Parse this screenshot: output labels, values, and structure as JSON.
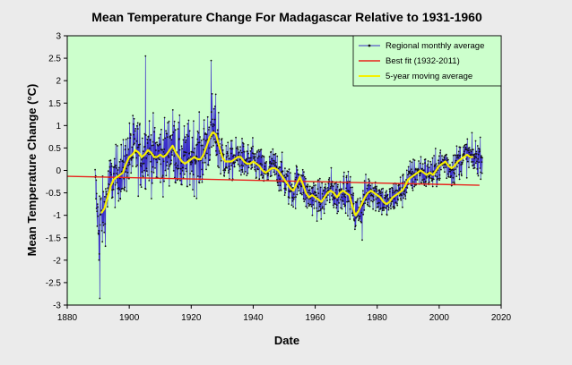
{
  "chart_data": {
    "type": "line",
    "title": "Mean Temperature Change For Madagascar Relative to 1931-1960",
    "xlabel": "Date",
    "ylabel": "Mean Temperature  Change  (°C)",
    "xlim": [
      1880,
      2020
    ],
    "ylim": [
      -3,
      3
    ],
    "xticks": [
      1880,
      1900,
      1920,
      1940,
      1960,
      1980,
      2000,
      2020
    ],
    "yticks": [
      -3,
      -2.5,
      -2,
      -1.5,
      -1,
      -0.5,
      0,
      0.5,
      1,
      1.5,
      2,
      2.5,
      3
    ],
    "grid": false,
    "legend_position": "top-right",
    "series": [
      {
        "name": "Regional monthly average",
        "style": "line-markers",
        "color": "#3b2fc9",
        "marker_color": "#111111",
        "years": [
          1889,
          1890,
          1891,
          1892,
          1893,
          1894,
          1895,
          1896,
          1897,
          1898,
          1899,
          1900,
          1901,
          1902,
          1903,
          1904,
          1905,
          1906,
          1907,
          1908,
          1909,
          1910,
          1911,
          1912,
          1913,
          1914,
          1915,
          1916,
          1917,
          1918,
          1919,
          1920,
          1921,
          1922,
          1923,
          1924,
          1925,
          1926,
          1927,
          1928,
          1929,
          1930,
          1931,
          1932,
          1933,
          1934,
          1935,
          1936,
          1937,
          1938,
          1939,
          1940,
          1941,
          1942,
          1943,
          1944,
          1945,
          1946,
          1947,
          1948,
          1949,
          1950,
          1951,
          1952,
          1953,
          1954,
          1955,
          1956,
          1957,
          1958,
          1959,
          1960,
          1961,
          1962,
          1963,
          1964,
          1965,
          1966,
          1967,
          1968,
          1969,
          1970,
          1971,
          1972,
          1973,
          1974,
          1975,
          1976,
          1977,
          1978,
          1979,
          1980,
          1981,
          1982,
          1983,
          1984,
          1985,
          1986,
          1987,
          1988,
          1989,
          1990,
          1991,
          1992,
          1993,
          1994,
          1995,
          1996,
          1997,
          1998,
          1999,
          2000,
          2001,
          2002,
          2003,
          2004,
          2005,
          2006,
          2007,
          2008,
          2009,
          2010,
          2011,
          2012,
          2013
        ],
        "mean": [
          -0.3,
          -1.2,
          -1.1,
          -0.9,
          -0.5,
          -0.2,
          -0.2,
          -0.1,
          0.0,
          -0.1,
          0.2,
          0.3,
          0.4,
          0.5,
          0.4,
          0.3,
          0.4,
          0.5,
          0.4,
          0.3,
          0.3,
          0.4,
          0.3,
          0.4,
          0.5,
          0.6,
          0.4,
          0.3,
          0.2,
          0.2,
          0.3,
          0.3,
          0.4,
          0.3,
          0.3,
          0.4,
          0.6,
          0.8,
          0.9,
          0.8,
          0.6,
          0.3,
          0.2,
          0.2,
          0.2,
          0.25,
          0.3,
          0.3,
          0.2,
          0.15,
          0.2,
          0.2,
          0.15,
          0.1,
          0.0,
          -0.05,
          0.0,
          0.1,
          0.05,
          0.0,
          -0.1,
          -0.2,
          -0.3,
          -0.4,
          -0.45,
          -0.3,
          -0.15,
          -0.3,
          -0.5,
          -0.6,
          -0.55,
          -0.6,
          -0.65,
          -0.7,
          -0.6,
          -0.5,
          -0.4,
          -0.5,
          -0.6,
          -0.5,
          -0.4,
          -0.45,
          -0.5,
          -0.8,
          -1.0,
          -0.9,
          -0.75,
          -0.6,
          -0.5,
          -0.4,
          -0.45,
          -0.55,
          -0.6,
          -0.7,
          -0.75,
          -0.7,
          -0.6,
          -0.55,
          -0.5,
          -0.45,
          -0.35,
          -0.2,
          -0.15,
          -0.1,
          -0.05,
          0.0,
          -0.05,
          -0.1,
          -0.05,
          -0.1,
          0.0,
          0.1,
          0.15,
          0.2,
          0.1,
          0.0,
          0.1,
          0.2,
          0.25,
          0.3,
          0.35,
          0.3,
          0.25,
          0.3,
          0.3
        ],
        "spread": [
          0.8,
          1.3,
          1.0,
          0.9,
          0.8,
          0.8,
          0.8,
          0.8,
          0.9,
          0.9,
          0.9,
          1.0,
          1.0,
          1.0,
          1.0,
          1.0,
          1.0,
          1.0,
          1.0,
          1.0,
          1.0,
          1.0,
          1.0,
          1.0,
          1.0,
          1.0,
          1.0,
          1.0,
          1.0,
          1.0,
          1.0,
          1.0,
          1.0,
          1.0,
          1.0,
          1.0,
          1.0,
          1.0,
          1.0,
          1.0,
          0.9,
          0.6,
          0.55,
          0.55,
          0.55,
          0.55,
          0.55,
          0.55,
          0.55,
          0.55,
          0.55,
          0.55,
          0.55,
          0.55,
          0.55,
          0.55,
          0.55,
          0.55,
          0.55,
          0.55,
          0.55,
          0.55,
          0.55,
          0.55,
          0.55,
          0.55,
          0.55,
          0.55,
          0.55,
          0.55,
          0.55,
          0.55,
          0.55,
          0.55,
          0.55,
          0.55,
          0.55,
          0.55,
          0.55,
          0.55,
          0.55,
          0.55,
          0.55,
          0.55,
          0.55,
          0.55,
          0.55,
          0.55,
          0.55,
          0.55,
          0.55,
          0.55,
          0.5,
          0.5,
          0.5,
          0.5,
          0.5,
          0.5,
          0.5,
          0.5,
          0.5,
          0.5,
          0.5,
          0.5,
          0.5,
          0.5,
          0.5,
          0.5,
          0.5,
          0.5,
          0.5,
          0.5,
          0.5,
          0.5,
          0.5,
          0.5,
          0.5,
          0.5,
          0.5,
          0.5,
          0.5,
          0.5,
          0.5,
          0.5,
          0.5
        ]
      },
      {
        "name": "Best fit (1932-2011)",
        "style": "line",
        "color": "#e8221b",
        "x": [
          1880,
          2013
        ],
        "y": [
          -0.13,
          -0.33
        ]
      },
      {
        "name": "5-year moving average",
        "style": "line",
        "color": "#f5f000",
        "x": [
          1891,
          1892,
          1893,
          1894,
          1895,
          1896,
          1897,
          1898,
          1899,
          1900,
          1901,
          1902,
          1903,
          1904,
          1905,
          1906,
          1907,
          1908,
          1909,
          1910,
          1911,
          1912,
          1913,
          1914,
          1915,
          1916,
          1917,
          1918,
          1919,
          1920,
          1921,
          1922,
          1923,
          1924,
          1925,
          1926,
          1927,
          1928,
          1929,
          1930,
          1931,
          1932,
          1933,
          1934,
          1935,
          1936,
          1937,
          1938,
          1939,
          1940,
          1941,
          1942,
          1943,
          1944,
          1945,
          1946,
          1947,
          1948,
          1949,
          1950,
          1951,
          1952,
          1953,
          1954,
          1955,
          1956,
          1957,
          1958,
          1959,
          1960,
          1961,
          1962,
          1963,
          1964,
          1965,
          1966,
          1967,
          1968,
          1969,
          1970,
          1971,
          1972,
          1973,
          1974,
          1975,
          1976,
          1977,
          1978,
          1979,
          1980,
          1981,
          1982,
          1983,
          1984,
          1985,
          1986,
          1987,
          1988,
          1989,
          1990,
          1991,
          1992,
          1993,
          1994,
          1995,
          1996,
          1997,
          1998,
          1999,
          2000,
          2001,
          2002,
          2003,
          2004,
          2005,
          2006,
          2007,
          2008,
          2009,
          2010,
          2011
        ],
        "y": [
          -0.95,
          -0.85,
          -0.6,
          -0.35,
          -0.2,
          -0.15,
          -0.1,
          -0.05,
          0.15,
          0.3,
          0.35,
          0.45,
          0.4,
          0.3,
          0.35,
          0.45,
          0.4,
          0.3,
          0.3,
          0.35,
          0.3,
          0.35,
          0.45,
          0.55,
          0.4,
          0.3,
          0.2,
          0.15,
          0.2,
          0.25,
          0.3,
          0.25,
          0.25,
          0.35,
          0.55,
          0.75,
          0.85,
          0.8,
          0.55,
          0.3,
          0.2,
          0.2,
          0.2,
          0.25,
          0.3,
          0.3,
          0.2,
          0.15,
          0.15,
          0.2,
          0.15,
          0.1,
          0.0,
          -0.05,
          0.0,
          0.05,
          0.05,
          0.0,
          -0.1,
          -0.2,
          -0.3,
          -0.4,
          -0.45,
          -0.3,
          -0.15,
          -0.3,
          -0.5,
          -0.6,
          -0.55,
          -0.6,
          -0.65,
          -0.7,
          -0.6,
          -0.5,
          -0.45,
          -0.5,
          -0.6,
          -0.5,
          -0.45,
          -0.5,
          -0.55,
          -0.8,
          -1.0,
          -0.9,
          -0.75,
          -0.6,
          -0.5,
          -0.45,
          -0.5,
          -0.55,
          -0.6,
          -0.7,
          -0.75,
          -0.7,
          -0.6,
          -0.55,
          -0.5,
          -0.45,
          -0.35,
          -0.2,
          -0.15,
          -0.1,
          -0.05,
          0.0,
          -0.05,
          -0.1,
          -0.05,
          -0.1,
          0.0,
          0.1,
          0.15,
          0.2,
          0.1,
          0.05,
          0.1,
          0.2,
          0.25,
          0.3,
          0.35,
          0.3,
          0.3
        ]
      }
    ]
  },
  "colors": {
    "background": "#ebebeb",
    "plot_area": "#ccffcc",
    "legend_bg": "#ccffcc"
  }
}
